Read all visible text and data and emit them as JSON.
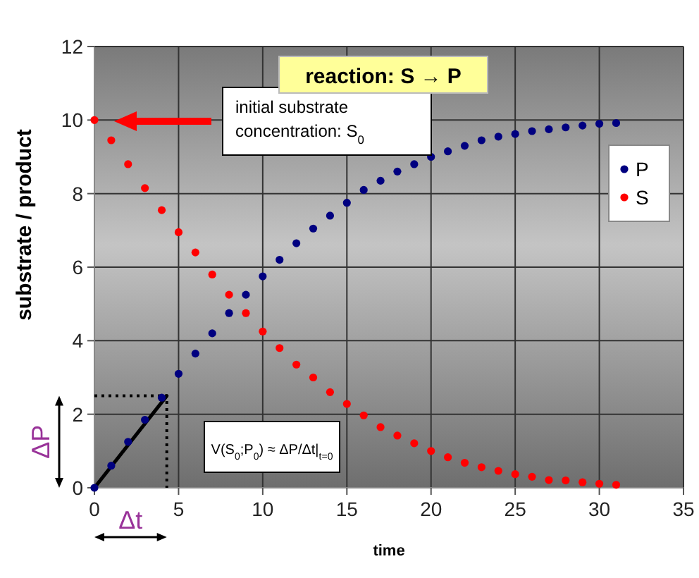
{
  "chart_data": {
    "type": "scatter",
    "title": "reaction: S → P",
    "xlabel": "time",
    "ylabel": "substrate / product",
    "xlim": [
      0,
      35
    ],
    "xticks": [
      0,
      5,
      10,
      15,
      20,
      25,
      30,
      35
    ],
    "ylim": [
      0,
      12
    ],
    "yticks": [
      0,
      2,
      4,
      6,
      8,
      10,
      12
    ],
    "grid": true,
    "legend": "right",
    "marker": "circle",
    "series": [
      {
        "name": "P",
        "color": "#000080",
        "x": [
          0,
          1,
          2,
          3,
          4,
          5,
          6,
          7,
          8,
          9,
          10,
          11,
          12,
          13,
          14,
          15,
          16,
          17,
          18,
          19,
          20,
          21,
          22,
          23,
          24,
          25,
          26,
          27,
          28,
          29,
          30,
          31
        ],
        "values": [
          0,
          0.6,
          1.25,
          1.85,
          2.45,
          3.1,
          3.65,
          4.2,
          4.75,
          5.25,
          5.75,
          6.2,
          6.65,
          7.05,
          7.4,
          7.75,
          8.1,
          8.35,
          8.6,
          8.8,
          9.0,
          9.15,
          9.3,
          9.45,
          9.55,
          9.62,
          9.7,
          9.75,
          9.8,
          9.85,
          9.9,
          9.92
        ]
      },
      {
        "name": "S",
        "color": "#ff0000",
        "x": [
          0,
          1,
          2,
          3,
          4,
          5,
          6,
          7,
          8,
          9,
          10,
          11,
          12,
          13,
          14,
          15,
          16,
          17,
          18,
          19,
          20,
          21,
          22,
          23,
          24,
          25,
          26,
          27,
          28,
          29,
          30,
          31
        ],
        "values": [
          10,
          9.45,
          8.8,
          8.15,
          7.55,
          6.95,
          6.4,
          5.8,
          5.25,
          4.75,
          4.25,
          3.8,
          3.35,
          3.0,
          2.6,
          2.28,
          1.97,
          1.65,
          1.42,
          1.21,
          1.0,
          0.83,
          0.68,
          0.56,
          0.46,
          0.37,
          0.3,
          0.21,
          0.2,
          0.15,
          0.11,
          0.08
        ]
      },
      {
        "type": "line",
        "marker": "none",
        "color": "#000000",
        "x": [
          0,
          4.3
        ],
        "values": [
          0,
          2.5
        ]
      },
      {
        "type": "line",
        "marker": "none",
        "color": "#000000",
        "line_style": "dotted",
        "x": [
          0,
          4.3,
          4.3
        ],
        "values": [
          2.5,
          2.5,
          0
        ]
      }
    ],
    "annotations": [
      "initial substrate concentration: S$_{0}$",
      "V(S$_{0}$;P$_{0}$) ≈ ΔP/Δt|$_{t=0}$",
      "ΔP",
      "Δt"
    ]
  }
}
